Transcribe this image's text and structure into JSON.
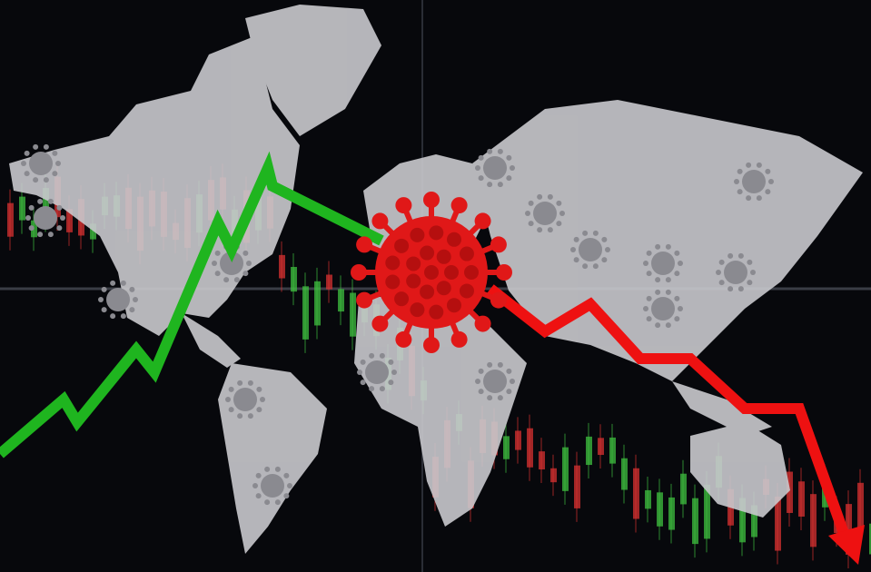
{
  "colors": {
    "background": "#07080c",
    "map": "#c9c9cd",
    "rising_line": "#1fb51f",
    "falling_line": "#ee1111",
    "virus": "#e01818",
    "candle_up": "#3fbf3f",
    "candle_down": "#d83030"
  },
  "icons": [
    "virus-icon",
    "down-arrow-icon"
  ]
}
